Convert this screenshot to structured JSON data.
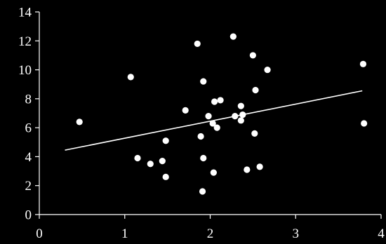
{
  "chart_data": {
    "type": "scatter",
    "title": "",
    "xlabel": "",
    "ylabel": "",
    "xlim": [
      0,
      4
    ],
    "ylim": [
      0,
      14
    ],
    "x_ticks": [
      "0",
      "1",
      "2",
      "3",
      "4"
    ],
    "y_ticks": [
      "0",
      "2",
      "4",
      "6",
      "8",
      "10",
      "12",
      "14"
    ],
    "grid": false,
    "legend": "none",
    "colors": {
      "background": "#000000",
      "foreground": "#ffffff",
      "points": "#ffffff",
      "trendline": "#ffffff"
    },
    "series": [
      {
        "points": [
          {
            "x": 0.47,
            "y": 6.4
          },
          {
            "x": 1.07,
            "y": 9.5
          },
          {
            "x": 1.15,
            "y": 3.9
          },
          {
            "x": 1.3,
            "y": 3.5
          },
          {
            "x": 1.44,
            "y": 3.7
          },
          {
            "x": 1.48,
            "y": 5.1
          },
          {
            "x": 1.48,
            "y": 2.6
          },
          {
            "x": 1.71,
            "y": 7.2
          },
          {
            "x": 1.85,
            "y": 11.8
          },
          {
            "x": 1.89,
            "y": 5.4
          },
          {
            "x": 1.91,
            "y": 1.6
          },
          {
            "x": 1.92,
            "y": 3.9
          },
          {
            "x": 1.92,
            "y": 9.2
          },
          {
            "x": 1.98,
            "y": 6.8
          },
          {
            "x": 2.03,
            "y": 6.3
          },
          {
            "x": 2.04,
            "y": 2.9
          },
          {
            "x": 2.05,
            "y": 7.8
          },
          {
            "x": 2.08,
            "y": 6.0
          },
          {
            "x": 2.12,
            "y": 7.9
          },
          {
            "x": 2.27,
            "y": 12.3
          },
          {
            "x": 2.29,
            "y": 6.8
          },
          {
            "x": 2.36,
            "y": 7.5
          },
          {
            "x": 2.36,
            "y": 6.5
          },
          {
            "x": 2.38,
            "y": 6.9
          },
          {
            "x": 2.43,
            "y": 3.1
          },
          {
            "x": 2.5,
            "y": 11.0
          },
          {
            "x": 2.52,
            "y": 5.6
          },
          {
            "x": 2.53,
            "y": 8.6
          },
          {
            "x": 2.58,
            "y": 3.3
          },
          {
            "x": 2.67,
            "y": 10.0
          },
          {
            "x": 3.79,
            "y": 10.4
          },
          {
            "x": 3.8,
            "y": 6.3
          }
        ]
      }
    ],
    "trendline": {
      "x": [
        0.3,
        3.78
      ],
      "y": [
        4.45,
        8.55
      ]
    }
  }
}
